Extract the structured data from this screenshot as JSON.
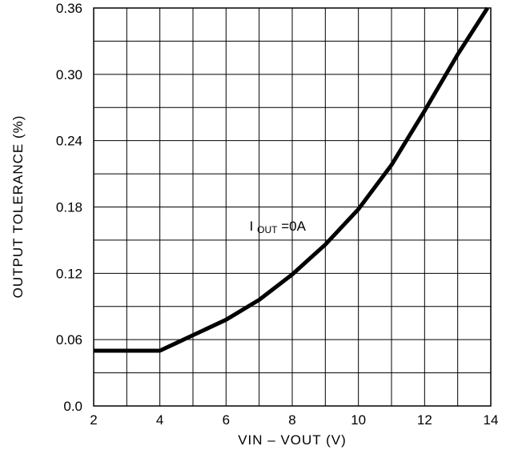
{
  "chart_data": {
    "type": "line",
    "xlabel": "VIN – VOUT (V)",
    "ylabel": "OUTPUT TOLERANCE (%)",
    "xlim": [
      2,
      14
    ],
    "ylim": [
      0,
      0.36
    ],
    "x_ticks": [
      "2",
      "4",
      "6",
      "8",
      "10",
      "12",
      "14"
    ],
    "y_ticks": [
      "0.0",
      "0.06",
      "0.12",
      "0.18",
      "0.24",
      "0.30",
      "0.36"
    ],
    "x_tick_values": [
      2,
      4,
      6,
      8,
      10,
      12,
      14
    ],
    "y_tick_values": [
      0,
      0.06,
      0.12,
      0.18,
      0.24,
      0.3,
      0.36
    ],
    "grid": true,
    "annotation": {
      "main": "I",
      "sub": "OUT",
      "rest": " =0A",
      "x": 10.0,
      "y": 0.163
    },
    "series": [
      {
        "x": [
          2,
          3,
          4,
          4.5,
          5,
          6,
          7,
          8,
          9,
          10,
          11,
          12,
          13,
          13.9
        ],
        "y": [
          0.05,
          0.05,
          0.05,
          0.057,
          0.064,
          0.078,
          0.096,
          0.119,
          0.146,
          0.178,
          0.218,
          0.267,
          0.318,
          0.36
        ]
      }
    ],
    "colors": {
      "line": "#000000",
      "grid": "#000000"
    }
  }
}
